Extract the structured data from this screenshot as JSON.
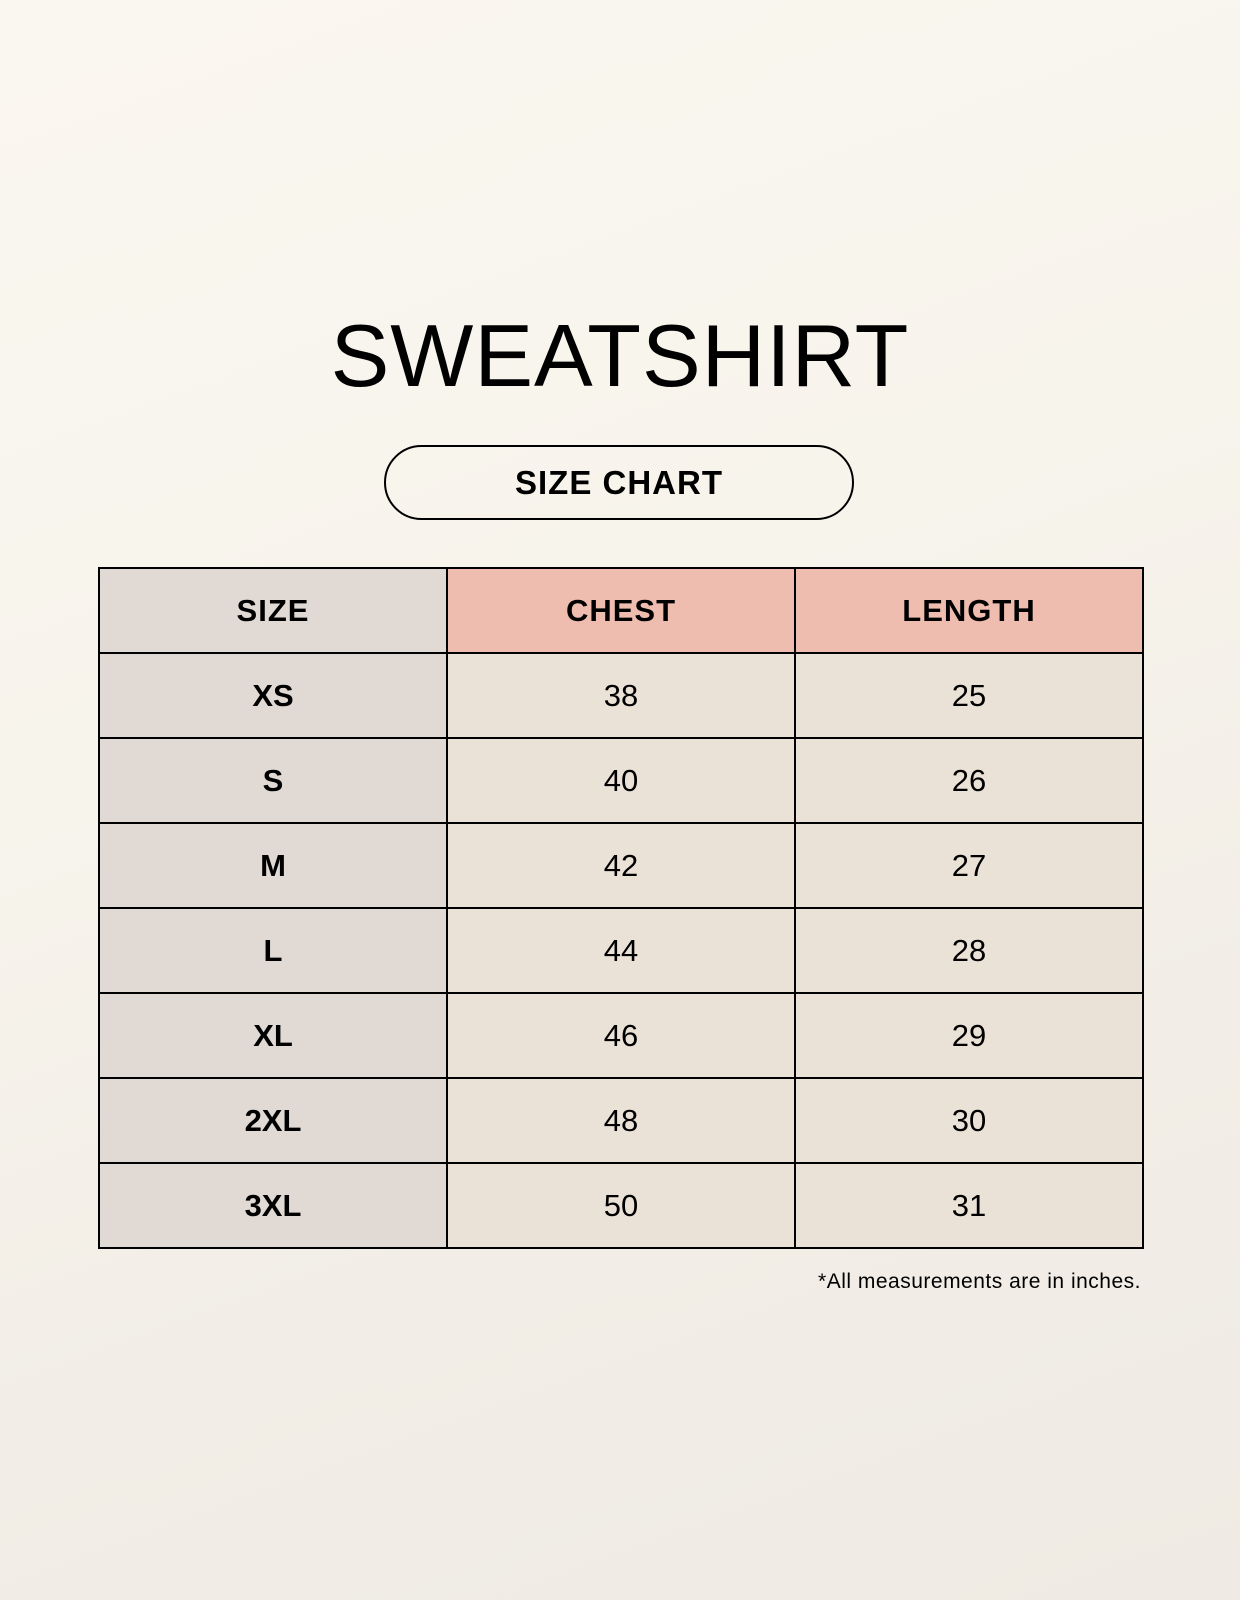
{
  "title": "SWEATSHIRT",
  "subtitle": "SIZE CHART",
  "table": {
    "headers": [
      "SIZE",
      "CHEST",
      "LENGTH"
    ],
    "rows": [
      [
        "XS",
        "38",
        "25"
      ],
      [
        "S",
        "40",
        "26"
      ],
      [
        "M",
        "42",
        "27"
      ],
      [
        "L",
        "44",
        "28"
      ],
      [
        "XL",
        "46",
        "29"
      ],
      [
        "2XL",
        "48",
        "30"
      ],
      [
        "3XL",
        "50",
        "31"
      ]
    ]
  },
  "footnote": "*All measurements are in inches.",
  "colors": {
    "size_column": "#e1d9d3",
    "header_accent": "#efbdaf",
    "cell": "#ebe2d7"
  }
}
